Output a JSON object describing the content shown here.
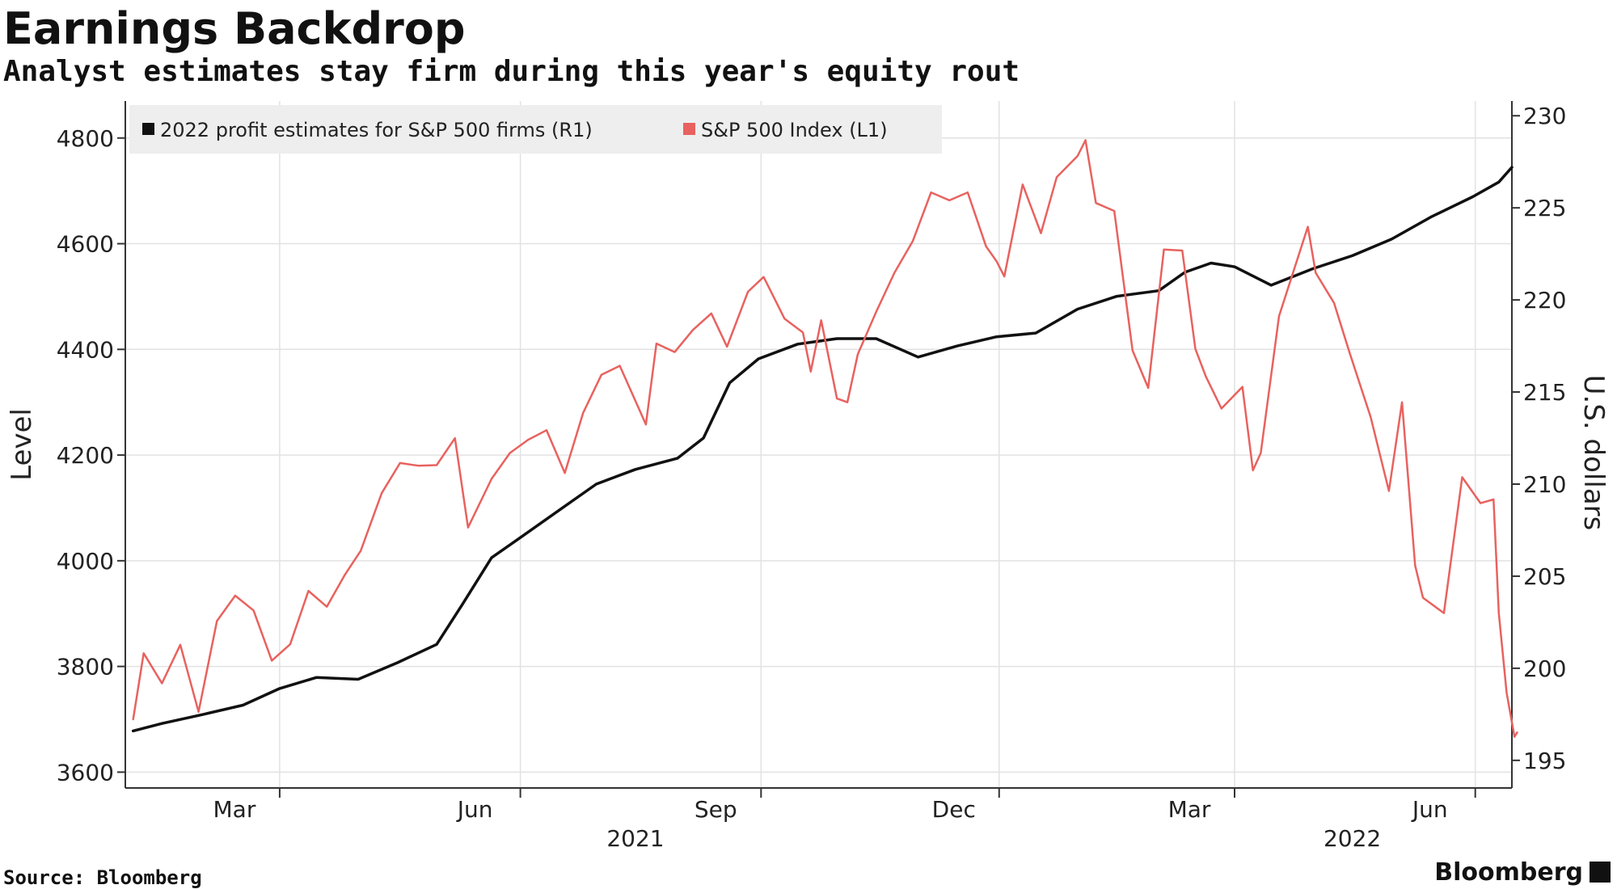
{
  "header": {
    "title": "Earnings Backdrop",
    "subtitle": "Analyst estimates stay firm during this year's equity rout"
  },
  "footer": {
    "source": "Source: Bloomberg",
    "brand": "Bloomberg"
  },
  "chart_data": {
    "type": "line",
    "title": "Earnings Backdrop",
    "subtitle": "Analyst estimates stay firm during this year's equity rout",
    "x_axis": {
      "tick_labels": [
        "Mar",
        "Jun",
        "Sep",
        "Dec",
        "Mar",
        "Jun"
      ],
      "tick_dates": [
        "2021-03-01",
        "2021-06-01",
        "2021-09-01",
        "2021-12-01",
        "2022-03-01",
        "2022-06-01"
      ],
      "year_labels": [
        "2021",
        "2022"
      ],
      "year_label_dates": [
        "2021-07-15",
        "2022-04-15"
      ],
      "range": [
        "2021-01-01",
        "2022-06-15"
      ]
    },
    "y_left": {
      "label": "Level",
      "range": [
        3570,
        4870
      ],
      "ticks": [
        3600,
        3800,
        4000,
        4200,
        4400,
        4600,
        4800
      ]
    },
    "y_right": {
      "label": "U.S. dollars",
      "range": [
        193.5,
        230.8
      ],
      "ticks": [
        195,
        200,
        205,
        210,
        215,
        220,
        225,
        230
      ]
    },
    "grid": true,
    "legend": {
      "placement": "top-left"
    },
    "colors": {
      "estimates": "#111111",
      "index": "#e8625f",
      "legend_bg": "#eeeeee",
      "grid": "#e2e2e2"
    },
    "series": [
      {
        "name": "2022 profit estimates for S&P 500 firms (R1)",
        "axis": "right",
        "points": [
          [
            "2021-01-04",
            196.6
          ],
          [
            "2021-01-15",
            197.0
          ],
          [
            "2021-01-31",
            197.5
          ],
          [
            "2021-02-15",
            198.0
          ],
          [
            "2021-03-01",
            198.9
          ],
          [
            "2021-03-15",
            199.5
          ],
          [
            "2021-03-31",
            199.4
          ],
          [
            "2021-04-15",
            200.3
          ],
          [
            "2021-04-30",
            201.3
          ],
          [
            "2021-05-10",
            203.5
          ],
          [
            "2021-05-21",
            206.0
          ],
          [
            "2021-05-31",
            207.0
          ],
          [
            "2021-06-15",
            208.5
          ],
          [
            "2021-06-30",
            210.0
          ],
          [
            "2021-07-15",
            210.8
          ],
          [
            "2021-07-31",
            211.4
          ],
          [
            "2021-08-10",
            212.5
          ],
          [
            "2021-08-20",
            215.5
          ],
          [
            "2021-08-31",
            216.8
          ],
          [
            "2021-09-15",
            217.6
          ],
          [
            "2021-09-30",
            217.9
          ],
          [
            "2021-10-15",
            217.9
          ],
          [
            "2021-10-31",
            216.9
          ],
          [
            "2021-11-15",
            217.5
          ],
          [
            "2021-11-30",
            218.0
          ],
          [
            "2021-12-15",
            218.2
          ],
          [
            "2021-12-31",
            219.5
          ],
          [
            "2022-01-15",
            220.2
          ],
          [
            "2022-01-31",
            220.5
          ],
          [
            "2022-02-10",
            221.5
          ],
          [
            "2022-02-20",
            222.0
          ],
          [
            "2022-03-01",
            221.8
          ],
          [
            "2022-03-15",
            220.8
          ],
          [
            "2022-03-31",
            221.7
          ],
          [
            "2022-04-15",
            222.4
          ],
          [
            "2022-04-30",
            223.3
          ],
          [
            "2022-05-15",
            224.5
          ],
          [
            "2022-05-31",
            225.6
          ],
          [
            "2022-06-10",
            226.4
          ],
          [
            "2022-06-15",
            227.2
          ]
        ]
      },
      {
        "name": "S&P 500 Index (L1)",
        "axis": "left",
        "points": [
          [
            "2021-01-04",
            3700
          ],
          [
            "2021-01-08",
            3825
          ],
          [
            "2021-01-15",
            3768
          ],
          [
            "2021-01-22",
            3841
          ],
          [
            "2021-01-29",
            3714
          ],
          [
            "2021-02-05",
            3886
          ],
          [
            "2021-02-12",
            3934
          ],
          [
            "2021-02-19",
            3906
          ],
          [
            "2021-02-26",
            3811
          ],
          [
            "2021-03-05",
            3842
          ],
          [
            "2021-03-12",
            3943
          ],
          [
            "2021-03-19",
            3913
          ],
          [
            "2021-03-26",
            3974
          ],
          [
            "2021-04-01",
            4019
          ],
          [
            "2021-04-09",
            4128
          ],
          [
            "2021-04-16",
            4185
          ],
          [
            "2021-04-23",
            4180
          ],
          [
            "2021-04-30",
            4181
          ],
          [
            "2021-05-07",
            4232
          ],
          [
            "2021-05-12",
            4063
          ],
          [
            "2021-05-21",
            4155
          ],
          [
            "2021-05-28",
            4204
          ],
          [
            "2021-06-04",
            4229
          ],
          [
            "2021-06-11",
            4247
          ],
          [
            "2021-06-18",
            4166
          ],
          [
            "2021-06-25",
            4280
          ],
          [
            "2021-07-02",
            4352
          ],
          [
            "2021-07-09",
            4369
          ],
          [
            "2021-07-19",
            4258
          ],
          [
            "2021-07-23",
            4411
          ],
          [
            "2021-07-30",
            4395
          ],
          [
            "2021-08-06",
            4437
          ],
          [
            "2021-08-13",
            4468
          ],
          [
            "2021-08-19",
            4405
          ],
          [
            "2021-08-27",
            4509
          ],
          [
            "2021-09-02",
            4537
          ],
          [
            "2021-09-10",
            4458
          ],
          [
            "2021-09-17",
            4432
          ],
          [
            "2021-09-20",
            4358
          ],
          [
            "2021-09-24",
            4455
          ],
          [
            "2021-09-30",
            4307
          ],
          [
            "2021-10-04",
            4300
          ],
          [
            "2021-10-08",
            4391
          ],
          [
            "2021-10-15",
            4471
          ],
          [
            "2021-10-22",
            4545
          ],
          [
            "2021-10-29",
            4605
          ],
          [
            "2021-11-05",
            4697
          ],
          [
            "2021-11-12",
            4682
          ],
          [
            "2021-11-19",
            4697
          ],
          [
            "2021-11-26",
            4595
          ],
          [
            "2021-11-30",
            4567
          ],
          [
            "2021-12-03",
            4538
          ],
          [
            "2021-12-10",
            4712
          ],
          [
            "2021-12-17",
            4620
          ],
          [
            "2021-12-23",
            4726
          ],
          [
            "2021-12-31",
            4766
          ],
          [
            "2022-01-03",
            4796
          ],
          [
            "2022-01-07",
            4677
          ],
          [
            "2022-01-14",
            4662
          ],
          [
            "2022-01-21",
            4398
          ],
          [
            "2022-01-27",
            4327
          ],
          [
            "2022-02-02",
            4589
          ],
          [
            "2022-02-09",
            4587
          ],
          [
            "2022-02-14",
            4401
          ],
          [
            "2022-02-18",
            4349
          ],
          [
            "2022-02-24",
            4288
          ],
          [
            "2022-03-04",
            4329
          ],
          [
            "2022-03-08",
            4171
          ],
          [
            "2022-03-11",
            4204
          ],
          [
            "2022-03-18",
            4463
          ],
          [
            "2022-03-29",
            4632
          ],
          [
            "2022-04-01",
            4545
          ],
          [
            "2022-04-08",
            4488
          ],
          [
            "2022-04-14",
            4393
          ],
          [
            "2022-04-22",
            4272
          ],
          [
            "2022-04-29",
            4132
          ],
          [
            "2022-05-04",
            4300
          ],
          [
            "2022-05-09",
            3991
          ],
          [
            "2022-05-12",
            3930
          ],
          [
            "2022-05-20",
            3901
          ],
          [
            "2022-05-27",
            4158
          ],
          [
            "2022-06-03",
            4109
          ],
          [
            "2022-06-08",
            4116
          ],
          [
            "2022-06-10",
            3901
          ],
          [
            "2022-06-13",
            3750
          ],
          [
            "2022-06-16",
            3667
          ],
          [
            "2022-06-17",
            3675
          ]
        ]
      }
    ]
  }
}
